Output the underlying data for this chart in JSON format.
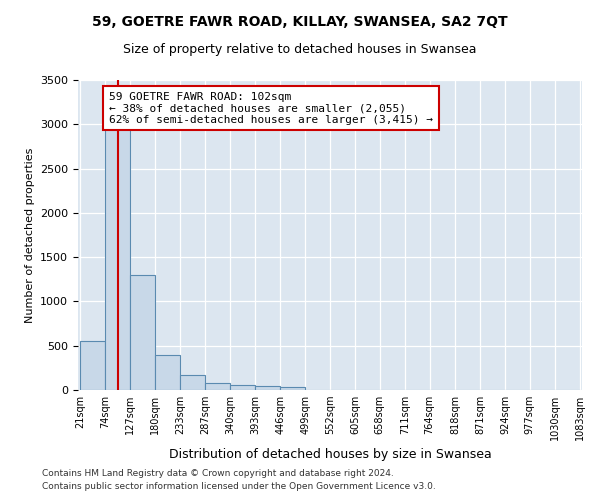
{
  "title": "59, GOETRE FAWR ROAD, KILLAY, SWANSEA, SA2 7QT",
  "subtitle": "Size of property relative to detached houses in Swansea",
  "xlabel": "Distribution of detached houses by size in Swansea",
  "ylabel": "Number of detached properties",
  "bin_edges": [
    21,
    74,
    127,
    180,
    233,
    287,
    340,
    393,
    446,
    499,
    552,
    605,
    658,
    711,
    764,
    818,
    871,
    924,
    977,
    1030,
    1083
  ],
  "bar_heights": [
    550,
    3000,
    1300,
    400,
    170,
    80,
    55,
    50,
    30,
    5,
    2,
    1,
    1,
    0,
    0,
    0,
    0,
    0,
    0,
    0
  ],
  "bar_color": "#c8d8e8",
  "bar_edge_color": "#5a8ab0",
  "property_size": 102,
  "vline_color": "#cc0000",
  "annotation_text": "59 GOETRE FAWR ROAD: 102sqm\n← 38% of detached houses are smaller (2,055)\n62% of semi-detached houses are larger (3,415) →",
  "annotation_box_color": "#ffffff",
  "annotation_edge_color": "#cc0000",
  "ylim": [
    0,
    3500
  ],
  "yticks": [
    0,
    500,
    1000,
    1500,
    2000,
    2500,
    3000,
    3500
  ],
  "footer1": "Contains HM Land Registry data © Crown copyright and database right 2024.",
  "footer2": "Contains public sector information licensed under the Open Government Licence v3.0.",
  "background_color": "#dce6f0",
  "plot_background": "#ffffff",
  "title_fontsize": 10,
  "subtitle_fontsize": 9,
  "ylabel_fontsize": 8,
  "xlabel_fontsize": 9,
  "tick_fontsize": 8,
  "xtick_fontsize": 7,
  "footer_fontsize": 6.5,
  "annotation_fontsize": 8
}
